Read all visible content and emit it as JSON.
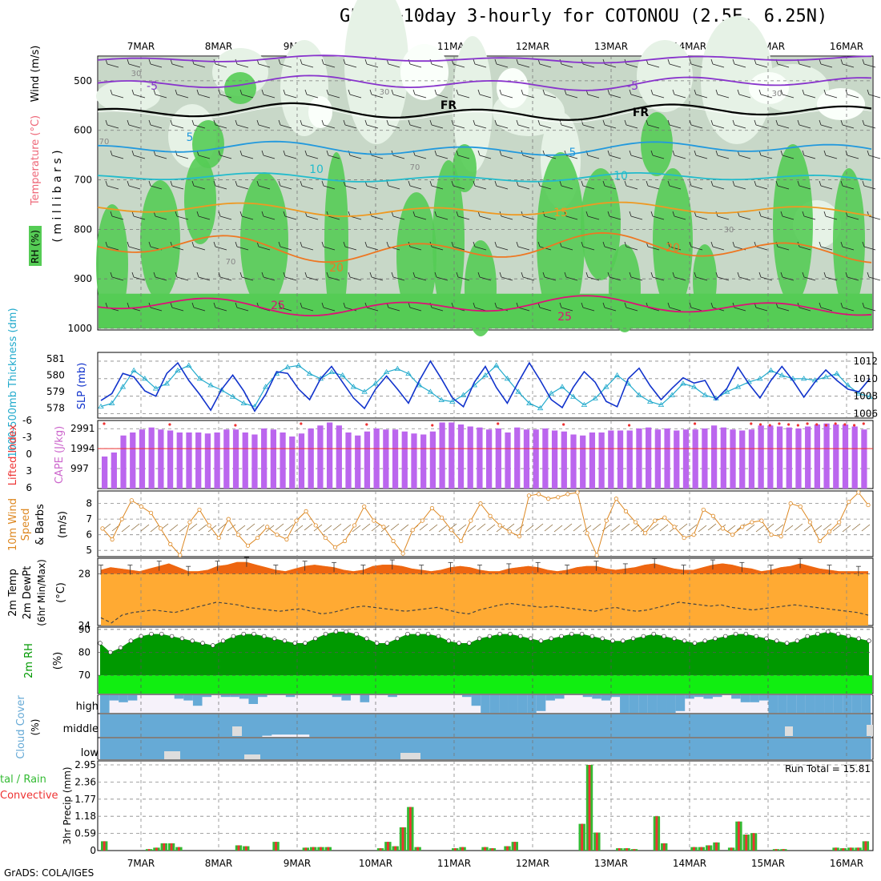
{
  "title": "GFS 0~10day 3-hourly for COTONOU (2.5E, 6.25N)",
  "footer": "GrADS: COLA/IGES",
  "dates": [
    "7MAR",
    "8MAR",
    "9MAR",
    "10MAR",
    "11MAR",
    "12MAR",
    "13MAR",
    "14MAR",
    "15MAR",
    "16MAR"
  ],
  "colors": {
    "rh_green": "#55cc55",
    "rh_light": "#e6f2e6",
    "rh_mid": "#c8d8c8",
    "cape": "#bb66ee",
    "slp": "#1133cc",
    "thickness": "#22aacc",
    "wind": "#dd8822",
    "temp_fill": "#ffaa33",
    "temp_top": "#ee6611",
    "rh2m": "#009900",
    "rh2m_low": "#11ee11",
    "cloud": "#66aad6",
    "rain": "#33bb33",
    "conv": "#ee3333"
  },
  "panels": {
    "upper": {
      "ylabel_rh": "RH (%)",
      "ylabel_temp": "Temperature (°C)",
      "ylabel_wind": "Wind (m/s)",
      "ylabel_mb": "( m i l l i b a r s )",
      "yticks": [
        "500",
        "600",
        "700",
        "800",
        "900",
        "1000"
      ],
      "contour_labels": [
        "-5",
        "-5",
        "FR",
        "FR",
        "5",
        "5",
        "10",
        "10",
        "15",
        "20",
        "20",
        "25",
        "25",
        "30",
        "30",
        "30",
        "70",
        "70",
        "70",
        "30"
      ]
    },
    "slp": {
      "ylabel_thick": "1000-500mb Thickness (dm)",
      "ylabel_slp": "SLP (mb)",
      "thick_ticks": [
        "581",
        "580",
        "579",
        "578"
      ],
      "slp_ticks": [
        "1012",
        "1010",
        "1008",
        "1006"
      ]
    },
    "cape": {
      "ylabel_li": "Lifted Index",
      "ylabel_cape": "CAPE (J/kg)",
      "li_ticks": [
        "-6",
        "-3",
        "0",
        "3",
        "6"
      ],
      "cape_ticks": [
        "2991",
        "1994",
        "997"
      ]
    },
    "wind10": {
      "ylabel_a": "10m Wind",
      "ylabel_b": "Speed",
      "ylabel_c": "& Barbs",
      "ylabel_unit": "(m/s)",
      "ticks": [
        "8",
        "7",
        "6",
        "5"
      ]
    },
    "temp2m": {
      "ylabel_a": "2m Temp",
      "ylabel_b": "2m DewPt",
      "ylabel_c": "(6hr Min/Max)",
      "ylabel_unit": "(°C)",
      "ticks": [
        "28",
        "24"
      ]
    },
    "rh2m": {
      "ylabel": "2m RH",
      "ylabel_unit": "(%)",
      "ticks": [
        "90",
        "80",
        "70"
      ]
    },
    "cloud": {
      "ylabel": "Cloud Cover",
      "ylabel_unit": "(%)",
      "levels": [
        "high",
        "middle",
        "low"
      ]
    },
    "precip": {
      "ylabel_a": "tal / Rain",
      "ylabel_b": "Convective",
      "ylabel_unit": "3hr Precip (mm)",
      "ticks": [
        "2.95",
        "2.36",
        "1.77",
        "1.18",
        "0.59",
        "0"
      ],
      "run_total": "Run Total = 15.81"
    }
  },
  "chart_data": [
    {
      "type": "line",
      "name": "SLP",
      "unit": "mb",
      "ylim": [
        1005.5,
        1013
      ],
      "values": [
        1007.5,
        1008.3,
        1010.6,
        1010.2,
        1008.6,
        1008.0,
        1010.6,
        1011.8,
        1009.8,
        1008.2,
        1006.4,
        1008.8,
        1010.4,
        1008.6,
        1006.3,
        1008.2,
        1010.8,
        1010.6,
        1008.8,
        1007.6,
        1010.0,
        1011.4,
        1009.6,
        1007.8,
        1006.6,
        1008.8,
        1010.3,
        1008.8,
        1007.2,
        1009.8,
        1012.0,
        1010.0,
        1007.8,
        1006.8,
        1009.6,
        1011.4,
        1009.0,
        1007.2,
        1009.6,
        1011.8,
        1009.8,
        1007.6,
        1006.7,
        1009.0,
        1010.8,
        1009.6,
        1007.4,
        1006.8,
        1010.0,
        1011.2,
        1009.2,
        1007.6,
        1008.9,
        1010.1,
        1009.5,
        1009.8,
        1007.6,
        1008.9,
        1011.3,
        1009.4,
        1007.8,
        1009.8,
        1011.4,
        1009.8,
        1007.9,
        1009.6,
        1011.0,
        1009.8,
        1008.8,
        1008.5,
        1010.0
      ]
    },
    {
      "type": "line",
      "name": "1000-500mb Thickness",
      "unit": "dm",
      "ylim": [
        577.4,
        581.4
      ],
      "values": [
        578.1,
        578.3,
        579.3,
        580.3,
        579.8,
        579.2,
        579.5,
        580.3,
        580.6,
        579.8,
        579.4,
        579.1,
        578.7,
        578.3,
        578.1,
        579.3,
        580.1,
        580.5,
        580.6,
        580.1,
        579.8,
        580.2,
        580.0,
        579.3,
        579.0,
        579.5,
        580.2,
        580.4,
        580.1,
        579.4,
        579.0,
        578.5,
        578.4,
        578.8,
        579.4,
        580.0,
        580.6,
        579.8,
        579.0,
        578.3,
        578.0,
        578.9,
        579.3,
        578.7,
        578.2,
        578.6,
        579.3,
        580.0,
        579.5,
        578.8,
        578.4,
        578.2,
        578.8,
        579.5,
        579.3,
        578.8,
        578.6,
        579.0,
        579.3,
        579.6,
        579.8,
        580.3,
        580.0,
        579.8,
        579.8,
        579.7,
        579.9,
        580.1,
        579.4,
        578.9,
        578.7
      ]
    },
    {
      "type": "bar",
      "name": "CAPE",
      "unit": "J/kg",
      "ylim": [
        0,
        3400
      ],
      "values": [
        1600,
        1800,
        2650,
        2800,
        2950,
        3050,
        2950,
        2900,
        2800,
        2800,
        2800,
        2750,
        2800,
        2950,
        2950,
        2800,
        2700,
        3000,
        2950,
        2800,
        2600,
        2750,
        3000,
        3150,
        3300,
        3150,
        2800,
        2650,
        2850,
        3000,
        2950,
        2950,
        2850,
        2750,
        2700,
        2850,
        3300,
        3300,
        3200,
        3100,
        3050,
        2950,
        3000,
        2800,
        3050,
        2950,
        2950,
        3000,
        2900,
        2850,
        2700,
        2650,
        2800,
        2800,
        2900,
        2900,
        2900,
        3000,
        3050,
        2950,
        3000,
        2900,
        2950,
        2950,
        3000,
        3150,
        3050,
        2950,
        2900,
        2950,
        3150,
        3150,
        3100,
        3050,
        3000,
        3100,
        3200,
        3250,
        3200,
        3200,
        3100,
        2950
      ]
    },
    {
      "type": "line",
      "name": "10m Wind Speed",
      "unit": "m/s",
      "ylim": [
        4.6,
        8.8
      ],
      "values": [
        6.4,
        5.7,
        7.0,
        8.2,
        7.8,
        7.4,
        6.4,
        5.4,
        4.7,
        6.8,
        7.6,
        6.6,
        5.8,
        7.0,
        6.0,
        5.3,
        5.8,
        6.5,
        6.0,
        5.7,
        6.9,
        7.5,
        6.6,
        5.8,
        5.2,
        5.6,
        6.6,
        7.8,
        6.9,
        6.5,
        5.6,
        4.8,
        6.3,
        6.9,
        7.7,
        7.1,
        6.3,
        5.6,
        6.9,
        8.0,
        7.2,
        6.6,
        6.2,
        5.9,
        8.5,
        8.6,
        8.3,
        8.4,
        8.6,
        8.7,
        6.1,
        4.7,
        6.9,
        8.3,
        7.5,
        6.8,
        6.1,
        6.9,
        7.1,
        6.5,
        5.8,
        6.0,
        7.6,
        7.2,
        6.4,
        6.0,
        6.5,
        6.8,
        6.9,
        6.0,
        5.9,
        8.0,
        7.8,
        6.8,
        5.6,
        6.2,
        6.8,
        8.1,
        8.7,
        7.9
      ]
    },
    {
      "type": "area",
      "name": "2m Temp",
      "unit": "°C",
      "ylim": [
        24,
        29.2
      ],
      "values": [
        28.3,
        28.5,
        28.4,
        28.3,
        28.2,
        28.4,
        28.6,
        28.8,
        28.5,
        28.2,
        28.2,
        28.3,
        28.6,
        28.7,
        28.9,
        28.9,
        28.7,
        28.5,
        28.3,
        28.2,
        28.4,
        28.6,
        28.7,
        28.6,
        28.5,
        28.3,
        28.2,
        28.3,
        28.6,
        28.7,
        28.7,
        28.6,
        28.4,
        28.3,
        28.2,
        28.3,
        28.5,
        28.6,
        28.5,
        28.3,
        28.2,
        28.2,
        28.4,
        28.5,
        28.6,
        28.5,
        28.3,
        28.2,
        28.3,
        28.5,
        28.6,
        28.6,
        28.4,
        28.3,
        28.4,
        28.5,
        28.7,
        28.8,
        28.6,
        28.4,
        28.3,
        28.3,
        28.5,
        28.7,
        28.8,
        28.7,
        28.5,
        28.4,
        28.2,
        28.3,
        28.5,
        28.6,
        28.8,
        28.6,
        28.4,
        28.3,
        28.2,
        28.2,
        28.2,
        28.2
      ]
    },
    {
      "type": "line",
      "name": "2m DewPt",
      "unit": "°C",
      "ylim": [
        24,
        29.2
      ],
      "values": [
        24.6,
        24.2,
        24.8,
        25.0,
        25.1,
        25.2,
        25.1,
        25.0,
        25.2,
        25.4,
        25.6,
        25.8,
        25.7,
        25.6,
        25.4,
        25.3,
        25.2,
        25.1,
        25.2,
        25.3,
        25.1,
        24.9,
        25.0,
        25.2,
        25.4,
        25.5,
        25.4,
        25.3,
        25.2,
        25.1,
        25.2,
        25.3,
        25.4,
        25.2,
        25.0,
        24.9,
        25.2,
        25.4,
        25.6,
        25.7,
        25.6,
        25.5,
        25.4,
        25.5,
        25.4,
        25.3,
        25.2,
        25.1,
        25.3,
        25.4,
        25.2,
        25.1,
        25.2,
        25.4,
        25.6,
        25.8,
        25.7,
        25.6,
        25.5,
        25.6,
        25.4,
        25.3,
        25.2,
        25.3,
        25.4,
        25.5,
        25.6,
        25.5,
        25.4,
        25.3,
        25.2,
        25.1,
        25.0,
        24.8
      ]
    },
    {
      "type": "area",
      "name": "2m RH",
      "unit": "%",
      "ylim": [
        62,
        91
      ],
      "values": [
        84,
        80,
        82,
        85,
        87,
        88,
        88,
        87,
        86,
        85,
        84,
        83,
        85,
        87,
        88,
        88,
        87,
        86,
        85,
        84,
        84,
        86,
        88,
        89,
        89,
        88,
        86,
        84,
        84,
        86,
        88,
        88,
        88,
        87,
        85,
        84,
        84,
        86,
        87,
        88,
        88,
        87,
        86,
        85,
        86,
        87,
        88,
        88,
        87,
        86,
        85,
        85,
        86,
        87,
        88,
        87,
        86,
        85,
        84,
        85,
        86,
        87,
        88,
        88,
        87,
        86,
        85,
        84,
        85,
        87,
        88,
        89,
        88,
        87,
        86,
        85
      ]
    },
    {
      "type": "bar",
      "name": "High Cloud",
      "unit": "%",
      "ylim": [
        0,
        100
      ],
      "values": [
        100,
        30,
        40,
        30,
        0,
        0,
        0,
        0,
        20,
        30,
        60,
        10,
        0,
        10,
        10,
        20,
        50,
        10,
        0,
        0,
        10,
        0,
        0,
        0,
        0,
        10,
        30,
        0,
        40,
        0,
        0,
        10,
        0,
        0,
        0,
        0,
        0,
        0,
        0,
        10,
        60,
        100,
        100,
        100,
        100,
        100,
        100,
        90,
        30,
        20,
        0,
        0,
        10,
        20,
        30,
        10,
        100,
        100,
        100,
        100,
        100,
        100,
        90,
        20,
        10,
        20,
        10,
        0,
        20,
        40,
        40,
        30,
        100,
        100,
        100,
        100,
        100,
        100,
        100,
        100,
        100,
        100,
        100
      ]
    },
    {
      "type": "bar",
      "name": "Middle Cloud",
      "unit": "%",
      "ylim": [
        0,
        100
      ],
      "values": [
        100,
        100,
        100,
        100,
        100,
        100,
        100,
        100,
        100,
        100,
        100,
        100,
        100,
        100,
        100,
        100,
        100,
        95,
        90,
        90,
        90,
        90,
        100,
        100,
        100,
        100,
        100,
        100,
        100,
        100,
        100,
        100,
        100,
        100,
        100,
        100,
        100,
        100,
        100,
        100,
        100,
        100,
        100,
        100,
        100,
        100,
        100,
        100,
        100,
        100,
        100,
        100,
        100,
        100,
        100,
        100,
        100,
        100,
        100,
        100,
        100,
        100,
        100,
        100,
        100,
        100,
        100,
        100,
        100,
        100,
        100,
        100,
        100,
        100,
        100,
        100,
        100,
        100,
        100,
        100,
        100
      ]
    },
    {
      "type": "bar",
      "name": "Low Cloud",
      "unit": "%",
      "ylim": [
        0,
        100
      ],
      "values": [
        100,
        100,
        100,
        100,
        100,
        100,
        100,
        100,
        100,
        100,
        100,
        100,
        100,
        100,
        100,
        100,
        100,
        100,
        100,
        100,
        100,
        100,
        100,
        100,
        100,
        100,
        100,
        100,
        100,
        100,
        100,
        100,
        100,
        100,
        100,
        100,
        100,
        100,
        100,
        100,
        100,
        100,
        100,
        100,
        100,
        100,
        100,
        100,
        100,
        100,
        100,
        100,
        100,
        100,
        100,
        100,
        100,
        100,
        100,
        100,
        100,
        100,
        100,
        100,
        100,
        100,
        100,
        100,
        100,
        100,
        100,
        100,
        100,
        100,
        100,
        100,
        100,
        100,
        100,
        100,
        100
      ]
    },
    {
      "type": "bar",
      "name": "3hr Precip",
      "unit": "mm",
      "ylim": [
        0,
        2.95
      ],
      "run_total": 15.81,
      "values": [
        0.32,
        0,
        0,
        0,
        0,
        0,
        0.05,
        0.1,
        0.25,
        0.25,
        0.12,
        0,
        0,
        0,
        0,
        0,
        0,
        0,
        0.18,
        0.15,
        0,
        0,
        0,
        0.3,
        0,
        0,
        0,
        0.1,
        0.12,
        0.12,
        0.12,
        0,
        0,
        0,
        0,
        0,
        0,
        0.08,
        0.3,
        0.15,
        0.8,
        1.5,
        0.12,
        0,
        0,
        0,
        0,
        0.08,
        0.12,
        0,
        0,
        0.12,
        0.08,
        0,
        0.15,
        0.3,
        0,
        0,
        0,
        0,
        0,
        0,
        0,
        0,
        0.92,
        2.95,
        0.62,
        0,
        0,
        0.08,
        0.08,
        0.05,
        0,
        0,
        1.18,
        0.25,
        0,
        0,
        0,
        0.12,
        0.12,
        0.18,
        0.28,
        0,
        0.1,
        1.0,
        0.55,
        0.6,
        0,
        0,
        0.05,
        0.05,
        0,
        0,
        0,
        0,
        0,
        0,
        0.1,
        0.08,
        0.1,
        0.1,
        0.32
      ]
    }
  ]
}
